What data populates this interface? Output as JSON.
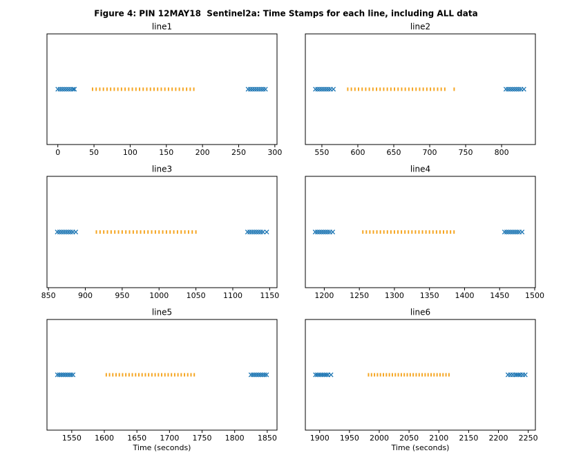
{
  "title": "Figure 4: PIN 12MAY18  Sentinel2a: Time Stamps for each line, including ALL data",
  "chart_data": [
    {
      "type": "strip",
      "title": "line1",
      "xlim": [
        -15,
        303
      ],
      "xticks": [
        0,
        50,
        100,
        150,
        200,
        250,
        300
      ],
      "series": [
        {
          "color": "#1f77b4",
          "marker": "x",
          "x": [
            0,
            3,
            6,
            9,
            12,
            15,
            18,
            21,
            23
          ]
        },
        {
          "color": "#f5a623",
          "marker": "tick",
          "x": [
            48,
            53,
            58,
            63,
            68,
            73,
            78,
            83,
            88,
            93,
            98,
            103,
            108,
            113,
            118,
            123,
            128,
            133,
            138,
            143,
            148,
            153,
            158,
            163,
            168,
            173,
            178,
            183,
            188
          ]
        },
        {
          "color": "#1f77b4",
          "marker": "x",
          "x": [
            263,
            266,
            269,
            272,
            275,
            278,
            281,
            284,
            287
          ]
        }
      ]
    },
    {
      "type": "strip",
      "title": "line2",
      "xlim": [
        527,
        847
      ],
      "xticks": [
        550,
        600,
        650,
        700,
        750,
        800
      ],
      "series": [
        {
          "color": "#1f77b4",
          "marker": "x",
          "x": [
            541,
            544,
            547,
            550,
            553,
            556,
            559,
            562,
            566
          ]
        },
        {
          "color": "#f5a623",
          "marker": "tick",
          "x": [
            586,
            591,
            596,
            601,
            606,
            611,
            616,
            621,
            626,
            631,
            636,
            641,
            646,
            651,
            656,
            661,
            666,
            671,
            676,
            681,
            686,
            691,
            696,
            701,
            706,
            711,
            716,
            721,
            734
          ]
        },
        {
          "color": "#1f77b4",
          "marker": "x",
          "x": [
            806,
            809,
            812,
            815,
            818,
            821,
            824,
            827,
            831
          ]
        }
      ]
    },
    {
      "type": "strip",
      "title": "line3",
      "xlim": [
        848,
        1160
      ],
      "xticks": [
        850,
        900,
        950,
        1000,
        1050,
        1100,
        1150
      ],
      "series": [
        {
          "color": "#1f77b4",
          "marker": "x",
          "x": [
            862,
            865,
            868,
            871,
            874,
            877,
            880,
            883,
            887
          ]
        },
        {
          "color": "#f5a623",
          "marker": "tick",
          "x": [
            915,
            920,
            925,
            930,
            935,
            940,
            945,
            950,
            955,
            960,
            965,
            970,
            975,
            980,
            985,
            990,
            995,
            1000,
            1005,
            1010,
            1015,
            1020,
            1025,
            1030,
            1035,
            1040,
            1045,
            1050
          ]
        },
        {
          "color": "#1f77b4",
          "marker": "x",
          "x": [
            1120,
            1123,
            1126,
            1129,
            1132,
            1135,
            1138,
            1141,
            1146
          ]
        }
      ]
    },
    {
      "type": "strip",
      "title": "line4",
      "xlim": [
        1173,
        1501
      ],
      "xticks": [
        1200,
        1250,
        1300,
        1350,
        1400,
        1450,
        1500
      ],
      "series": [
        {
          "color": "#1f77b4",
          "marker": "x",
          "x": [
            1187,
            1190,
            1193,
            1196,
            1199,
            1202,
            1205,
            1208,
            1212
          ]
        },
        {
          "color": "#f5a623",
          "marker": "tick",
          "x": [
            1255,
            1260,
            1265,
            1270,
            1275,
            1280,
            1285,
            1290,
            1295,
            1300,
            1305,
            1310,
            1315,
            1320,
            1325,
            1330,
            1335,
            1340,
            1345,
            1350,
            1355,
            1360,
            1365,
            1370,
            1375,
            1380,
            1385
          ]
        },
        {
          "color": "#1f77b4",
          "marker": "x",
          "x": [
            1457,
            1460,
            1463,
            1466,
            1469,
            1472,
            1475,
            1478,
            1482
          ]
        }
      ]
    },
    {
      "type": "strip",
      "title": "line5",
      "xlabel": "Time (seconds)",
      "xlim": [
        1512,
        1865
      ],
      "xticks": [
        1550,
        1600,
        1650,
        1700,
        1750,
        1800,
        1850
      ],
      "series": [
        {
          "color": "#1f77b4",
          "marker": "x",
          "x": [
            1528,
            1531,
            1534,
            1537,
            1540,
            1543,
            1546,
            1549,
            1552
          ]
        },
        {
          "color": "#f5a623",
          "marker": "tick",
          "x": [
            1603,
            1608,
            1613,
            1618,
            1623,
            1628,
            1633,
            1638,
            1643,
            1648,
            1653,
            1658,
            1663,
            1668,
            1673,
            1678,
            1683,
            1688,
            1693,
            1698,
            1703,
            1708,
            1713,
            1718,
            1723,
            1728,
            1733,
            1738
          ]
        },
        {
          "color": "#1f77b4",
          "marker": "x",
          "x": [
            1825,
            1828,
            1831,
            1834,
            1837,
            1840,
            1843,
            1846,
            1849
          ]
        }
      ]
    },
    {
      "type": "strip",
      "title": "line6",
      "xlabel": "Time (seconds)",
      "xlim": [
        1876,
        2262
      ],
      "xticks": [
        1900,
        1950,
        2000,
        2050,
        2100,
        2150,
        2200,
        2250
      ],
      "series": [
        {
          "color": "#1f77b4",
          "marker": "x",
          "x": [
            1893,
            1896,
            1899,
            1902,
            1905,
            1908,
            1911,
            1914,
            1919
          ]
        },
        {
          "color": "#f5a623",
          "marker": "tick",
          "x": [
            1982,
            1987,
            1992,
            1997,
            2002,
            2007,
            2012,
            2017,
            2022,
            2027,
            2032,
            2037,
            2042,
            2047,
            2052,
            2057,
            2062,
            2067,
            2072,
            2077,
            2082,
            2087,
            2092,
            2097,
            2102,
            2107,
            2112,
            2117
          ]
        },
        {
          "color": "#1f77b4",
          "marker": "x",
          "x": [
            2216,
            2220,
            2224,
            2228,
            2231,
            2234,
            2237,
            2241,
            2245
          ]
        }
      ]
    }
  ]
}
